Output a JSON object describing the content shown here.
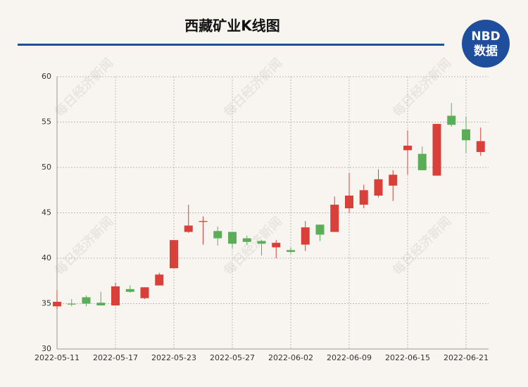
{
  "chart_data": {
    "type": "candlestick",
    "title": "西藏矿业K线图",
    "categories": [
      "2022-05-11",
      null,
      null,
      null,
      "2022-05-17",
      null,
      null,
      null,
      "2022-05-23",
      null,
      null,
      null,
      "2022-05-27",
      null,
      null,
      null,
      "2022-06-02",
      null,
      null,
      null,
      "2022-06-09",
      null,
      null,
      null,
      "2022-06-15",
      null,
      null,
      null,
      "2022-06-21",
      null
    ],
    "open": [
      34.7,
      35.0,
      35.7,
      35.1,
      34.8,
      36.6,
      35.6,
      37.0,
      38.9,
      42.9,
      44.0,
      43.0,
      42.9,
      42.2,
      41.9,
      41.2,
      40.9,
      41.5,
      43.7,
      42.9,
      45.5,
      45.9,
      46.9,
      48.0,
      51.9,
      51.5,
      49.1,
      55.7,
      54.2,
      51.7
    ],
    "high": [
      36.5,
      35.5,
      35.9,
      36.3,
      37.3,
      37.0,
      36.8,
      38.4,
      42.0,
      45.9,
      44.6,
      43.5,
      42.9,
      42.5,
      42.0,
      42.0,
      41.2,
      44.1,
      43.7,
      46.8,
      49.4,
      48.1,
      49.8,
      49.7,
      54.1,
      52.3,
      54.8,
      57.1,
      55.6,
      54.4
    ],
    "low": [
      34.4,
      34.7,
      34.7,
      34.8,
      34.8,
      36.2,
      35.5,
      37.0,
      38.9,
      42.8,
      41.5,
      41.4,
      41.1,
      41.5,
      40.3,
      40.0,
      40.5,
      40.8,
      41.9,
      42.9,
      45.0,
      45.5,
      46.7,
      46.3,
      49.2,
      49.7,
      49.1,
      54.5,
      51.6,
      51.3
    ],
    "close": [
      35.2,
      34.9,
      35.0,
      34.8,
      36.9,
      36.3,
      36.8,
      38.2,
      42.0,
      43.6,
      44.1,
      42.2,
      41.6,
      41.8,
      41.6,
      41.7,
      40.7,
      43.4,
      42.6,
      45.9,
      46.9,
      47.5,
      48.7,
      49.2,
      52.4,
      49.7,
      54.8,
      54.7,
      53.0,
      52.9
    ],
    "up_color": "#d9403a",
    "down_color": "#5aae58",
    "ylim": [
      30,
      60
    ],
    "yticks": [
      30,
      35,
      40,
      45,
      50,
      55,
      60
    ],
    "grid": true
  },
  "logo": {
    "top": "NBD",
    "bottom": "数据"
  },
  "watermark": "每日经济新闻"
}
